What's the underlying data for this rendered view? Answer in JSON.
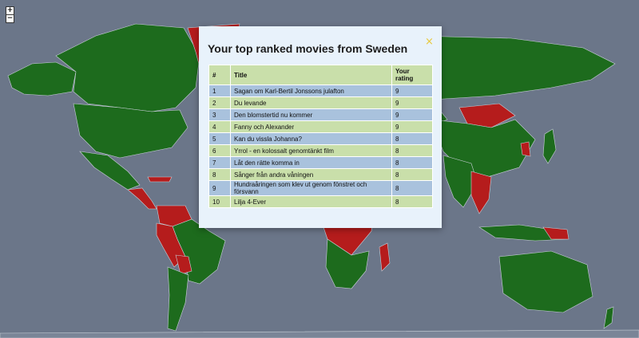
{
  "map": {
    "ocean_color": "#6b7689",
    "land_green": "#1d6b1d",
    "land_red": "#b51c1c",
    "border_color": "#c8d0d8"
  },
  "zoom_controls": {
    "in": "+",
    "out": "−"
  },
  "modal": {
    "title": "Your top ranked movies from Sweden",
    "close": "×",
    "columns": {
      "rank": "#",
      "title": "Title",
      "rating_line1": "Your",
      "rating_line2": "rating"
    },
    "rows": [
      {
        "rank": "1",
        "title": "Sagan om Karl-Bertil Jonssons julafton",
        "rating": "9"
      },
      {
        "rank": "2",
        "title": "Du levande",
        "rating": "9"
      },
      {
        "rank": "3",
        "title": "Den blomstertid nu kommer",
        "rating": "9"
      },
      {
        "rank": "4",
        "title": "Fanny och Alexander",
        "rating": "9"
      },
      {
        "rank": "5",
        "title": "Kan du vissla Johanna?",
        "rating": "8"
      },
      {
        "rank": "6",
        "title": "Yrrol - en kolossalt genomtänkt film",
        "rating": "8"
      },
      {
        "rank": "7",
        "title": "Låt den rätte komma in",
        "rating": "8"
      },
      {
        "rank": "8",
        "title": "Sånger från andra våningen",
        "rating": "8"
      },
      {
        "rank": "9",
        "title": "Hundraåringen som klev ut genom fönstret och försvann",
        "rating": "8"
      },
      {
        "rank": "10",
        "title": "Lilja 4-Ever",
        "rating": "8"
      }
    ]
  }
}
